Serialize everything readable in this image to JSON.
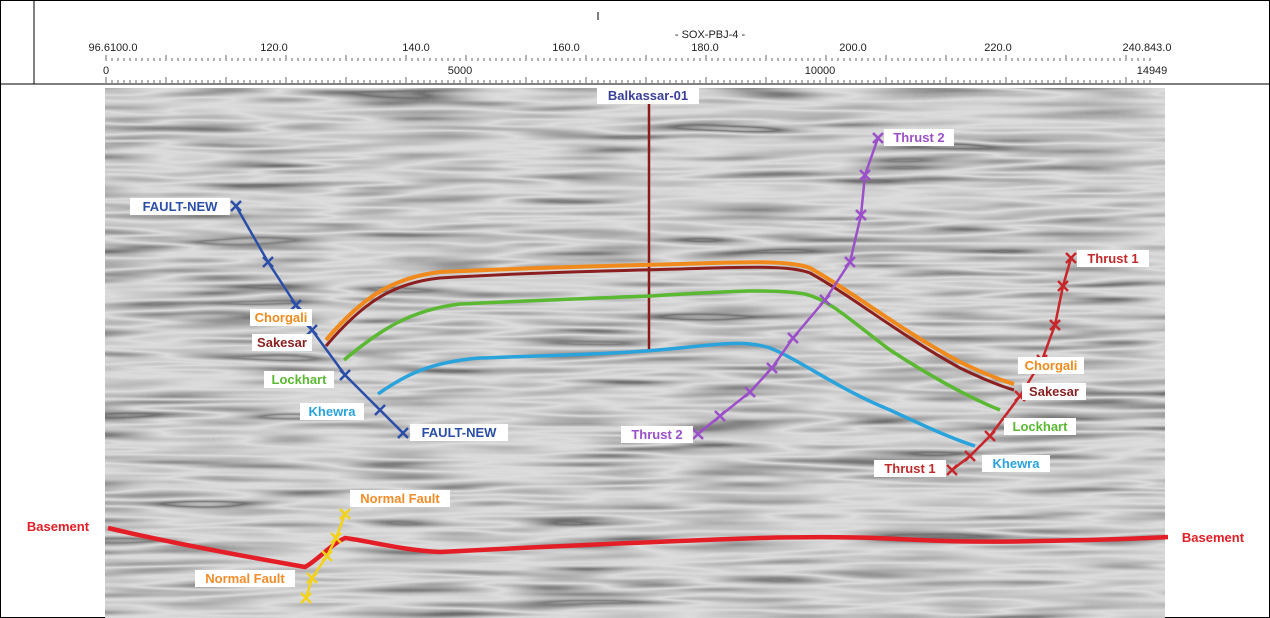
{
  "header": {
    "line_name": "- SOX-PBJ-4 -",
    "top_axis_labels": [
      "96.6100.0",
      "120.0",
      "140.0",
      "160.0",
      "180.0",
      "200.0",
      "220.0",
      "240.843.0"
    ],
    "bottom_axis_labels": [
      "0",
      "5000",
      "10000",
      "14949"
    ]
  },
  "well": {
    "name": "Balkassar-01",
    "color": "#8b1a1a"
  },
  "horizons": [
    {
      "id": "chorgali",
      "color": "#f08a1c",
      "left_label": "Chorgali",
      "right_label": "Chorgali"
    },
    {
      "id": "sakesar",
      "color": "#8b1f1f",
      "left_label": "Sakesar",
      "right_label": "Sakesar"
    },
    {
      "id": "lockhart",
      "color": "#5bb832",
      "left_label": "Lockhart",
      "right_label": "Lockhart"
    },
    {
      "id": "khewra",
      "color": "#2aa3dc",
      "left_label": "Khewra",
      "right_label": "Khewra"
    },
    {
      "id": "basement",
      "color": "#e41e26",
      "left_label": "Basement",
      "right_label": "Basement"
    }
  ],
  "faults": [
    {
      "id": "fault-new",
      "color": "#2b4ea8",
      "top_label": "FAULT-NEW",
      "bottom_label": "FAULT-NEW"
    },
    {
      "id": "thrust-2",
      "color": "#9b4fc8",
      "top_label": "Thrust 2",
      "bottom_label": "Thrust 2"
    },
    {
      "id": "thrust-1",
      "color": "#c7262b",
      "top_label": "Thrust 1",
      "bottom_label": "Thrust 1"
    },
    {
      "id": "normal-fault",
      "color": "#f2d21a",
      "top_label": "Normal Fault",
      "bottom_label": "Normal Fault"
    }
  ],
  "label_colors": {
    "fault_new": "#2b4ea8",
    "thrust_2": "#9b4fc8",
    "thrust_1": "#c22a2a",
    "normal_fault": "#f28c28",
    "chorgali": "#f08a1c",
    "sakesar": "#8b1f1f",
    "lockhart": "#5bb832",
    "khewra": "#2aa3dc",
    "basement": "#e41e26",
    "well": "#3a3f99"
  }
}
